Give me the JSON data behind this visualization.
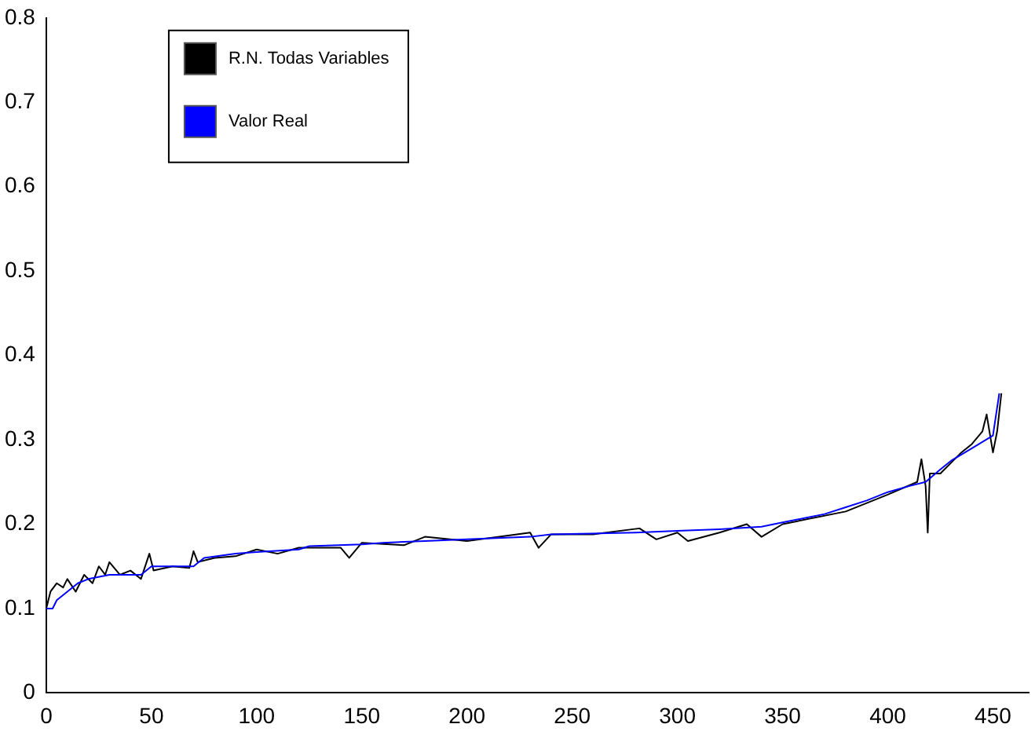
{
  "chart_data": {
    "type": "line",
    "xlim": [
      0,
      467
    ],
    "xticks": [
      0,
      50,
      100,
      150,
      200,
      250,
      300,
      350,
      400,
      450
    ],
    "ylim": [
      0,
      0.8
    ],
    "yticks": [
      0,
      0.1,
      0.2,
      0.3,
      0.4,
      0.5,
      0.6,
      0.7,
      0.8
    ],
    "grid": false,
    "legend": "top left",
    "marker": "none",
    "line_style": "solid",
    "series": [
      {
        "name": "R.N. Todas Variables",
        "color": "#000000",
        "x": [
          0,
          2,
          5,
          8,
          10,
          14,
          18,
          22,
          25,
          28,
          30,
          35,
          40,
          45,
          49,
          51,
          60,
          68,
          70,
          72,
          80,
          90,
          100,
          110,
          120,
          140,
          144,
          150,
          170,
          180,
          200,
          230,
          234,
          240,
          260,
          282,
          290,
          300,
          305,
          320,
          333,
          340,
          350,
          380,
          400,
          414,
          416,
          418,
          419,
          420,
          425,
          435,
          440,
          445,
          447,
          450,
          452,
          454
        ],
        "values": [
          0.1,
          0.12,
          0.13,
          0.125,
          0.135,
          0.12,
          0.14,
          0.13,
          0.15,
          0.14,
          0.155,
          0.14,
          0.145,
          0.135,
          0.165,
          0.145,
          0.15,
          0.148,
          0.168,
          0.155,
          0.16,
          0.162,
          0.17,
          0.165,
          0.172,
          0.172,
          0.16,
          0.178,
          0.175,
          0.185,
          0.18,
          0.19,
          0.172,
          0.188,
          0.188,
          0.195,
          0.182,
          0.19,
          0.18,
          0.19,
          0.2,
          0.185,
          0.2,
          0.215,
          0.235,
          0.25,
          0.277,
          0.245,
          0.19,
          0.26,
          0.26,
          0.285,
          0.295,
          0.31,
          0.33,
          0.285,
          0.31,
          0.355
        ]
      },
      {
        "name": "Valor Real",
        "color": "#0000ff",
        "x": [
          0,
          3,
          5,
          10,
          15,
          20,
          30,
          45,
          50,
          70,
          75,
          90,
          100,
          120,
          125,
          150,
          160,
          180,
          200,
          230,
          240,
          280,
          300,
          320,
          340,
          350,
          360,
          370,
          380,
          390,
          400,
          410,
          418,
          425,
          430,
          440,
          450,
          453
        ],
        "values": [
          0.1,
          0.1,
          0.11,
          0.12,
          0.13,
          0.135,
          0.14,
          0.14,
          0.15,
          0.15,
          0.16,
          0.165,
          0.167,
          0.17,
          0.174,
          0.176,
          0.178,
          0.18,
          0.182,
          0.185,
          0.188,
          0.19,
          0.192,
          0.194,
          0.197,
          0.202,
          0.207,
          0.212,
          0.22,
          0.228,
          0.238,
          0.245,
          0.25,
          0.265,
          0.275,
          0.29,
          0.305,
          0.355
        ]
      }
    ]
  }
}
